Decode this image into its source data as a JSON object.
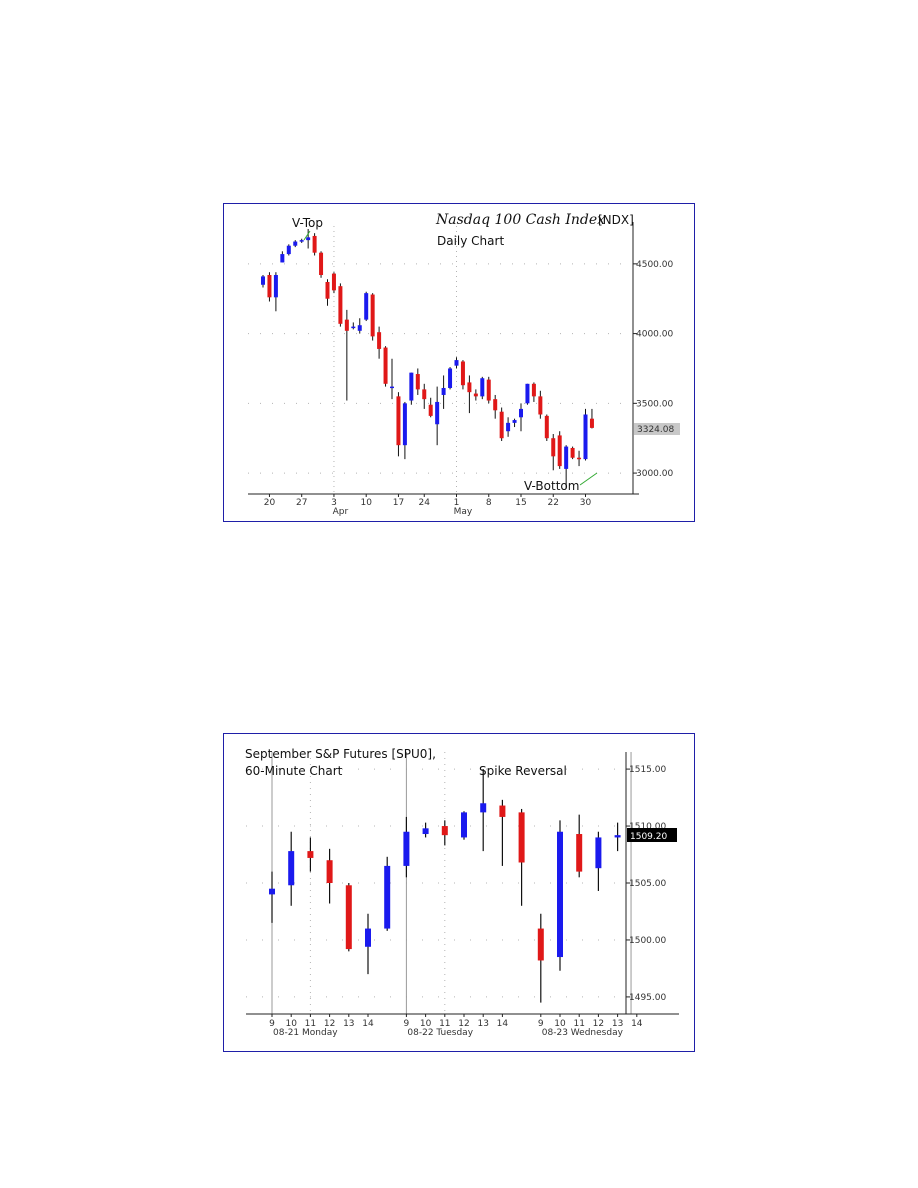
{
  "colors": {
    "up": "#1a1aee",
    "down": "#e01818",
    "frame": "#1f1fa8",
    "grid": "#b4b4b4",
    "annotation_line": "#33aa33"
  },
  "chart_data": [
    {
      "type": "candlestick",
      "title_italic": "Nasdaq 100 Cash Index",
      "title_symbol": "[NDX]",
      "subtitle": "Daily Chart",
      "annotations": [
        {
          "label": "V-Top",
          "target_index": 8
        },
        {
          "label": "V-Bottom",
          "target_index": 50
        }
      ],
      "ylim": [
        2850,
        4800
      ],
      "y_ticks": [
        {
          "value": 3000,
          "label": "3000.00"
        },
        {
          "value": 3500,
          "label": "3500.00"
        },
        {
          "value": 4000,
          "label": "4000.00"
        },
        {
          "value": 4500,
          "label": "4500.00"
        }
      ],
      "x_ticks": [
        {
          "index": 1,
          "label": "20"
        },
        {
          "index": 6,
          "label": "27"
        },
        {
          "index": 11,
          "label": "3"
        },
        {
          "index": 16,
          "label": "10"
        },
        {
          "index": 21,
          "label": "17"
        },
        {
          "index": 25,
          "label": "24"
        },
        {
          "index": 30,
          "label": "1"
        },
        {
          "index": 35,
          "label": "8"
        },
        {
          "index": 40,
          "label": "15"
        },
        {
          "index": 45,
          "label": "22"
        },
        {
          "index": 50,
          "label": "30"
        }
      ],
      "x_month_labels": [
        {
          "index": 12,
          "label": "Apr"
        },
        {
          "index": 31,
          "label": "May"
        }
      ],
      "last_value": "3324.08",
      "candles": [
        {
          "o": 4350,
          "h": 4420,
          "l": 4330,
          "c": 4410
        },
        {
          "o": 4420,
          "h": 4440,
          "l": 4230,
          "c": 4260
        },
        {
          "o": 4260,
          "h": 4440,
          "l": 4160,
          "c": 4420
        },
        {
          "o": 4510,
          "h": 4590,
          "l": 4510,
          "c": 4570
        },
        {
          "o": 4570,
          "h": 4640,
          "l": 4560,
          "c": 4630
        },
        {
          "o": 4630,
          "h": 4670,
          "l": 4620,
          "c": 4660
        },
        {
          "o": 4660,
          "h": 4680,
          "l": 4650,
          "c": 4670
        },
        {
          "o": 4670,
          "h": 4750,
          "l": 4610,
          "c": 4690
        },
        {
          "o": 4700,
          "h": 4720,
          "l": 4560,
          "c": 4580
        },
        {
          "o": 4580,
          "h": 4590,
          "l": 4400,
          "c": 4420
        },
        {
          "o": 4370,
          "h": 4390,
          "l": 4200,
          "c": 4250
        },
        {
          "o": 4430,
          "h": 4440,
          "l": 4290,
          "c": 4310
        },
        {
          "o": 4340,
          "h": 4360,
          "l": 4050,
          "c": 4070
        },
        {
          "o": 4100,
          "h": 4170,
          "l": 3520,
          "c": 4020
        },
        {
          "o": 4040,
          "h": 4080,
          "l": 4030,
          "c": 4050
        },
        {
          "o": 4020,
          "h": 4110,
          "l": 4000,
          "c": 4060
        },
        {
          "o": 4100,
          "h": 4300,
          "l": 4090,
          "c": 4290
        },
        {
          "o": 4280,
          "h": 4290,
          "l": 3950,
          "c": 3980
        },
        {
          "o": 4010,
          "h": 4050,
          "l": 3820,
          "c": 3890
        },
        {
          "o": 3900,
          "h": 3910,
          "l": 3620,
          "c": 3640
        },
        {
          "o": 3620,
          "h": 3820,
          "l": 3530,
          "c": 3620
        },
        {
          "o": 3550,
          "h": 3580,
          "l": 3120,
          "c": 3200
        },
        {
          "o": 3200,
          "h": 3510,
          "l": 3100,
          "c": 3500
        },
        {
          "o": 3520,
          "h": 3720,
          "l": 3490,
          "c": 3720
        },
        {
          "o": 3710,
          "h": 3750,
          "l": 3560,
          "c": 3600
        },
        {
          "o": 3600,
          "h": 3640,
          "l": 3460,
          "c": 3530
        },
        {
          "o": 3490,
          "h": 3540,
          "l": 3400,
          "c": 3410
        },
        {
          "o": 3350,
          "h": 3620,
          "l": 3200,
          "c": 3510
        },
        {
          "o": 3560,
          "h": 3700,
          "l": 3460,
          "c": 3610
        },
        {
          "o": 3610,
          "h": 3760,
          "l": 3600,
          "c": 3750
        },
        {
          "o": 3770,
          "h": 3830,
          "l": 3750,
          "c": 3810
        },
        {
          "o": 3800,
          "h": 3810,
          "l": 3600,
          "c": 3630
        },
        {
          "o": 3650,
          "h": 3700,
          "l": 3430,
          "c": 3580
        },
        {
          "o": 3570,
          "h": 3600,
          "l": 3520,
          "c": 3550
        },
        {
          "o": 3550,
          "h": 3690,
          "l": 3530,
          "c": 3680
        },
        {
          "o": 3670,
          "h": 3690,
          "l": 3500,
          "c": 3520
        },
        {
          "o": 3530,
          "h": 3560,
          "l": 3390,
          "c": 3450
        },
        {
          "o": 3440,
          "h": 3470,
          "l": 3230,
          "c": 3250
        },
        {
          "o": 3300,
          "h": 3400,
          "l": 3260,
          "c": 3360
        },
        {
          "o": 3360,
          "h": 3390,
          "l": 3330,
          "c": 3380
        },
        {
          "o": 3400,
          "h": 3500,
          "l": 3300,
          "c": 3460
        },
        {
          "o": 3500,
          "h": 3640,
          "l": 3490,
          "c": 3640
        },
        {
          "o": 3640,
          "h": 3650,
          "l": 3510,
          "c": 3550
        },
        {
          "o": 3550,
          "h": 3590,
          "l": 3390,
          "c": 3420
        },
        {
          "o": 3410,
          "h": 3420,
          "l": 3230,
          "c": 3250
        },
        {
          "o": 3250,
          "h": 3280,
          "l": 3020,
          "c": 3120
        },
        {
          "o": 3270,
          "h": 3300,
          "l": 3030,
          "c": 3050
        },
        {
          "o": 3030,
          "h": 3200,
          "l": 2890,
          "c": 3190
        },
        {
          "o": 3180,
          "h": 3190,
          "l": 3100,
          "c": 3110
        },
        {
          "o": 3110,
          "h": 3160,
          "l": 3050,
          "c": 3100
        },
        {
          "o": 3100,
          "h": 3460,
          "l": 3090,
          "c": 3420
        },
        {
          "o": 3390,
          "h": 3460,
          "l": 3320,
          "c": 3324
        }
      ]
    },
    {
      "type": "candlestick",
      "title": "September S&P Futures  [SPU0],",
      "subtitle": "60-Minute Chart",
      "annotations": [
        {
          "label": "Spike Reversal"
        }
      ],
      "ylim": [
        1493.5,
        1516.5
      ],
      "y_ticks": [
        {
          "value": 1495,
          "label": "1495.00"
        },
        {
          "value": 1500,
          "label": "1500.00"
        },
        {
          "value": 1505,
          "label": "1505.00"
        },
        {
          "value": 1510,
          "label": "1510.00"
        },
        {
          "value": 1515,
          "label": "1515.00"
        }
      ],
      "x_ticks": [
        {
          "index": 0,
          "label": "9"
        },
        {
          "index": 1,
          "label": "10"
        },
        {
          "index": 2,
          "label": "11"
        },
        {
          "index": 3,
          "label": "12"
        },
        {
          "index": 4,
          "label": "13"
        },
        {
          "index": 5,
          "label": "14"
        },
        {
          "index": 7,
          "label": "9"
        },
        {
          "index": 8,
          "label": "10"
        },
        {
          "index": 9,
          "label": "11"
        },
        {
          "index": 10,
          "label": "12"
        },
        {
          "index": 11,
          "label": "13"
        },
        {
          "index": 12,
          "label": "14"
        },
        {
          "index": 14,
          "label": "9"
        },
        {
          "index": 15,
          "label": "10"
        },
        {
          "index": 16,
          "label": "11"
        },
        {
          "index": 17,
          "label": "12"
        },
        {
          "index": 18,
          "label": "13"
        },
        {
          "index": 19,
          "label": "14"
        }
      ],
      "session_labels": [
        {
          "index": 0,
          "label": "08-21 Monday"
        },
        {
          "index": 7,
          "label": "08-22 Tuesday"
        },
        {
          "index": 14,
          "label": "08-23 Wednesday"
        }
      ],
      "session_lines": [
        0,
        7,
        18.7
      ],
      "last_value": "1509.20",
      "candles": [
        {
          "i": 0,
          "o": 1504.0,
          "h": 1506.0,
          "l": 1501.5,
          "c": 1504.5
        },
        {
          "i": 1,
          "o": 1504.8,
          "h": 1509.5,
          "l": 1503.0,
          "c": 1507.8
        },
        {
          "i": 2,
          "o": 1507.8,
          "h": 1509.0,
          "l": 1506.0,
          "c": 1507.2
        },
        {
          "i": 3,
          "o": 1507.0,
          "h": 1508.0,
          "l": 1503.2,
          "c": 1505.0
        },
        {
          "i": 4,
          "o": 1504.8,
          "h": 1505.0,
          "l": 1499.0,
          "c": 1499.2
        },
        {
          "i": 5,
          "o": 1499.4,
          "h": 1502.3,
          "l": 1497.0,
          "c": 1501.0
        },
        {
          "i": 6,
          "o": 1501.0,
          "h": 1507.3,
          "l": 1500.8,
          "c": 1506.5
        },
        {
          "i": 7,
          "o": 1506.5,
          "h": 1510.8,
          "l": 1505.5,
          "c": 1509.5
        },
        {
          "i": 8,
          "o": 1509.3,
          "h": 1510.3,
          "l": 1509.0,
          "c": 1509.8
        },
        {
          "i": 9,
          "o": 1510.0,
          "h": 1510.5,
          "l": 1508.3,
          "c": 1509.2
        },
        {
          "i": 10,
          "o": 1509.0,
          "h": 1511.3,
          "l": 1508.8,
          "c": 1511.2
        },
        {
          "i": 11,
          "o": 1511.2,
          "h": 1515.0,
          "l": 1507.8,
          "c": 1512.0
        },
        {
          "i": 12,
          "o": 1511.8,
          "h": 1512.3,
          "l": 1506.5,
          "c": 1510.8
        },
        {
          "i": 13,
          "o": 1511.2,
          "h": 1511.5,
          "l": 1503.0,
          "c": 1506.8
        },
        {
          "i": 14,
          "o": 1501.0,
          "h": 1502.3,
          "l": 1494.5,
          "c": 1498.2
        },
        {
          "i": 15,
          "o": 1498.5,
          "h": 1510.5,
          "l": 1497.3,
          "c": 1509.5
        },
        {
          "i": 16,
          "o": 1509.3,
          "h": 1511.0,
          "l": 1505.5,
          "c": 1506.0
        },
        {
          "i": 17,
          "o": 1506.3,
          "h": 1509.5,
          "l": 1504.3,
          "c": 1509.0
        },
        {
          "i": 18,
          "o": 1509.0,
          "h": 1510.3,
          "l": 1507.8,
          "c": 1509.2
        }
      ]
    }
  ]
}
